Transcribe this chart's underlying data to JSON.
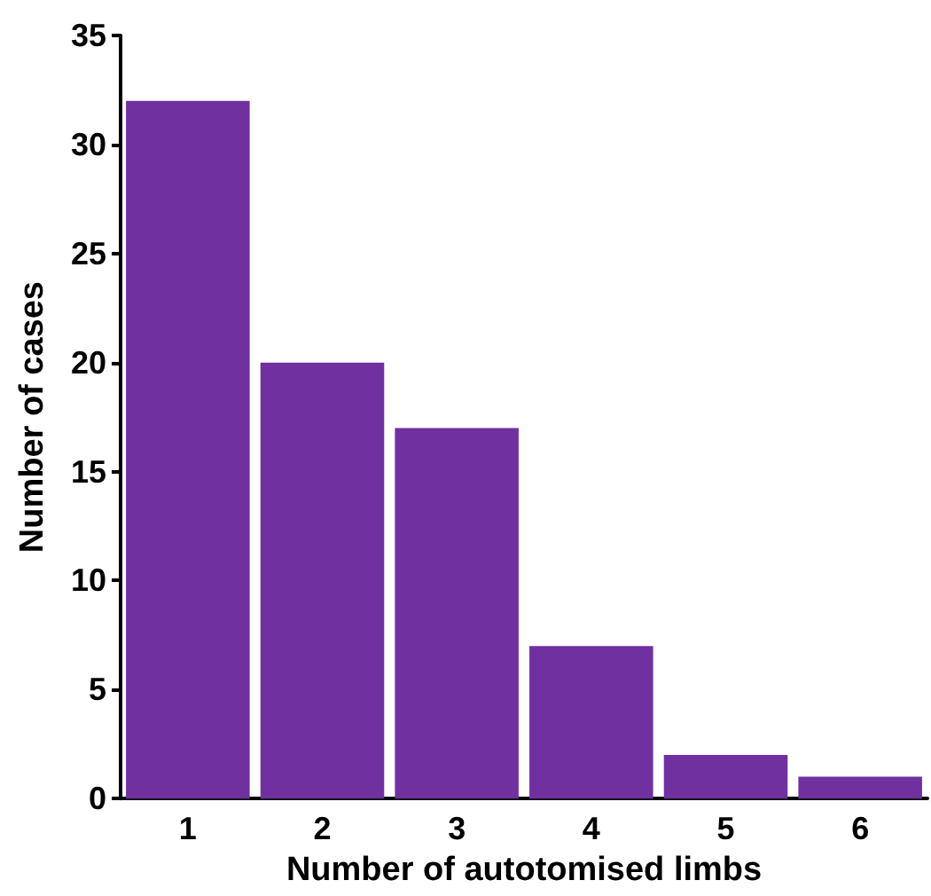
{
  "chart_data": {
    "type": "bar",
    "xlabel": "Number of autotomised limbs",
    "ylabel": "Number of cases",
    "categories": [
      "1",
      "2",
      "3",
      "4",
      "5",
      "6"
    ],
    "values": [
      32,
      20,
      17,
      7,
      2,
      1
    ],
    "color": "#7030a0",
    "ylim": [
      0,
      35
    ],
    "yticks": [
      0,
      5,
      10,
      15,
      20,
      25,
      30,
      35
    ],
    "grid": false
  }
}
